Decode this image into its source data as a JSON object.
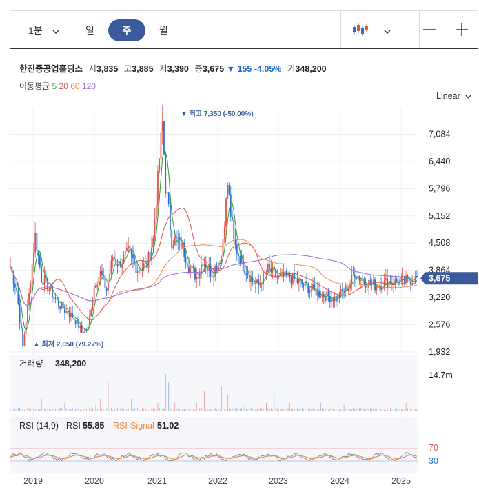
{
  "toolbar": {
    "interval_label": "1분",
    "tabs": [
      "일",
      "주",
      "월"
    ],
    "active_tab": "주",
    "chart_type_icon": "candlestick-icon",
    "zoom_out_icon": "minus-icon",
    "zoom_in_icon": "plus-icon",
    "accent": "#3a5a9b"
  },
  "info": {
    "name": "한진중공업홀딩스",
    "open_label": "시",
    "open": "3,835",
    "high_label": "고",
    "high": "3,885",
    "low_label": "저",
    "low": "3,390",
    "close_label": "종",
    "close": "3,675",
    "change": "▼ 155",
    "change_pct": "-4.05%",
    "volume_label": "거",
    "volume": "348,200"
  },
  "ma": {
    "label": "이동평균",
    "p1": "5",
    "p2": "20",
    "p3": "60",
    "p4": "120"
  },
  "scale_label": "Linear",
  "chart_data": [
    {
      "type": "candlestick",
      "y_ticks": [
        "7,084",
        "6,440",
        "5,796",
        "5,152",
        "4,508",
        "3,864",
        "3,220",
        "2,576",
        "1,932"
      ],
      "ylim": [
        1932,
        7728
      ],
      "x_ticks": [
        "2019",
        "2020",
        "2021",
        "2022",
        "2023",
        "2024",
        "2025"
      ],
      "current_price": "3,675",
      "max_label": "▼ 최고 7,350 (-50.00%)",
      "min_label": "▲ 최저 2,050 (79.27%)",
      "series": [
        {
          "name": "5",
          "color": "#2a9d3a"
        },
        {
          "name": "20",
          "color": "#e05050"
        },
        {
          "name": "60",
          "color": "#f08a40"
        },
        {
          "name": "120",
          "color": "#9a6be0"
        }
      ],
      "anchors": [
        [
          0,
          3950
        ],
        [
          4,
          3400
        ],
        [
          8,
          2050
        ],
        [
          12,
          3300
        ],
        [
          16,
          4700
        ],
        [
          20,
          3700
        ],
        [
          24,
          3500
        ],
        [
          30,
          3100
        ],
        [
          36,
          2900
        ],
        [
          42,
          2700
        ],
        [
          46,
          2400
        ],
        [
          50,
          2500
        ],
        [
          54,
          3500
        ],
        [
          58,
          3800
        ],
        [
          62,
          3400
        ],
        [
          66,
          4200
        ],
        [
          70,
          4000
        ],
        [
          76,
          4300
        ],
        [
          82,
          3900
        ],
        [
          88,
          4000
        ],
        [
          92,
          4600
        ],
        [
          96,
          6500
        ],
        [
          98,
          7350
        ],
        [
          100,
          5900
        ],
        [
          104,
          4600
        ],
        [
          110,
          4500
        ],
        [
          116,
          3900
        ],
        [
          120,
          3700
        ],
        [
          124,
          4100
        ],
        [
          130,
          3800
        ],
        [
          136,
          4200
        ],
        [
          140,
          5900
        ],
        [
          144,
          4500
        ],
        [
          150,
          4000
        ],
        [
          156,
          3600
        ],
        [
          160,
          3500
        ],
        [
          166,
          3900
        ],
        [
          172,
          3700
        ],
        [
          180,
          3700
        ],
        [
          190,
          3500
        ],
        [
          200,
          3300
        ],
        [
          210,
          3200
        ],
        [
          218,
          3500
        ],
        [
          222,
          3800
        ],
        [
          228,
          3600
        ],
        [
          236,
          3500
        ],
        [
          244,
          3600
        ],
        [
          254,
          3600
        ],
        [
          262,
          3675
        ]
      ],
      "candle_colors": {
        "up": "#e0524a",
        "down": "#2a6fd0"
      }
    },
    {
      "type": "bar",
      "title": "거래량",
      "value": "348,200",
      "y_tick": "14.7m",
      "spikes": [
        [
          14,
          4
        ],
        [
          20,
          3
        ],
        [
          35,
          2
        ],
        [
          55,
          1.5
        ],
        [
          58,
          3
        ],
        [
          63,
          7
        ],
        [
          78,
          3
        ],
        [
          95,
          2
        ],
        [
          100,
          9
        ],
        [
          102,
          7
        ],
        [
          106,
          2
        ],
        [
          120,
          2
        ],
        [
          125,
          5
        ],
        [
          136,
          6
        ],
        [
          140,
          4
        ],
        [
          150,
          2
        ],
        [
          165,
          2
        ],
        [
          170,
          4
        ],
        [
          180,
          2
        ],
        [
          200,
          2
        ],
        [
          215,
          1.5
        ],
        [
          240,
          1.5
        ],
        [
          255,
          2
        ]
      ]
    },
    {
      "type": "line",
      "title": "RSI (14,9)",
      "series": [
        {
          "name": "RSI",
          "value": "55.85",
          "color": "#8a8a8a"
        },
        {
          "name": "RSI-Signal",
          "value": "51.02",
          "color": "#f08a40"
        }
      ],
      "levels": [
        "70",
        "30"
      ],
      "ylim": [
        0,
        100
      ]
    }
  ]
}
